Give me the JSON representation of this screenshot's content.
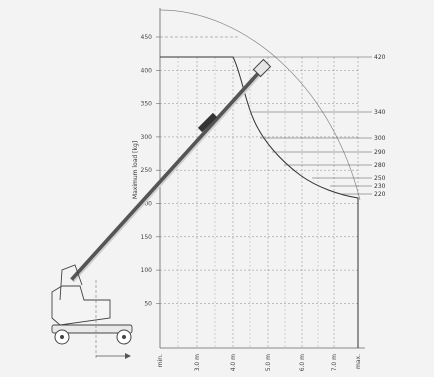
{
  "chart_data": {
    "type": "diagram",
    "title": "",
    "ylabel": "Maximum load [kg]",
    "y_ticks": [
      "450",
      "400",
      "350",
      "300",
      "250",
      "200",
      "150",
      "100",
      "50"
    ],
    "x_ticks": [
      "min.",
      "3.0 m",
      "4.0 m",
      "5.0 m",
      "6.0 m",
      "7.0 m",
      "max."
    ],
    "load_curve_labels": [
      "420",
      "340",
      "300",
      "290",
      "280",
      "250",
      "230",
      "220"
    ],
    "colors": {
      "grid": "#777777",
      "curve": "#333333",
      "boom": "#555555",
      "text": "#333333"
    }
  }
}
